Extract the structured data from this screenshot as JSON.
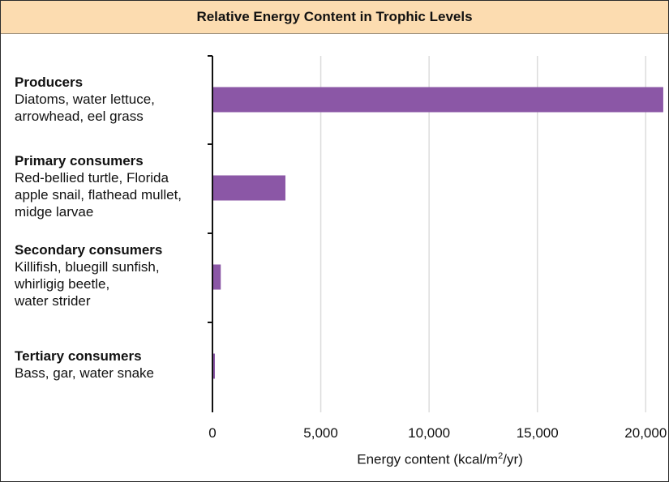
{
  "chart_data": {
    "type": "bar",
    "orientation": "horizontal",
    "title": "Relative Energy Content in Trophic Levels",
    "xlabel_main": "Energy content (kcal/m",
    "xlabel_sup": "2",
    "xlabel_tail": "/yr)",
    "xlim": [
      0,
      21000
    ],
    "xticks": [
      0,
      5000,
      10000,
      15000,
      20000
    ],
    "xtick_labels": [
      "0",
      "5,000",
      "10,000",
      "15,000",
      "20,000"
    ],
    "grid": "vertical",
    "bar_color": "#8b57a6",
    "categories": [
      {
        "name": "Producers",
        "desc": "Diatoms, water lettuce,\narrowhead, eel grass",
        "value": 20810
      },
      {
        "name": "Primary consumers",
        "desc": "Red-bellied turtle, Florida\napple snail, flathead mullet,\nmidge larvae",
        "value": 3368
      },
      {
        "name": "Secondary consumers",
        "desc": "Killifish, bluegill sunfish,\nwhirligig beetle,\nwater strider",
        "value": 383
      },
      {
        "name": "Tertiary consumers",
        "desc": "Bass, gar, water snake",
        "value": 21
      }
    ]
  }
}
